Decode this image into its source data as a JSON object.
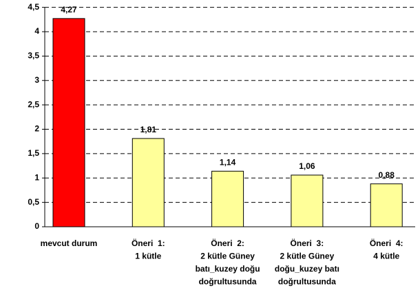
{
  "chart_data": {
    "type": "bar",
    "categories": [
      "mevcut durum",
      "Öneri  1:\n1 kütle",
      "Öneri  2:\n2 kütle Güney\nbatı_kuzey doğu\ndoğrultusunda",
      "Öneri  3:\n2 kütle Güney\ndoğu_kuzey batı\ndoğrultusunda",
      "Öneri  4:\n4 kütle"
    ],
    "values": [
      4.27,
      1.81,
      1.14,
      1.06,
      0.88
    ],
    "value_labels": [
      "4,27",
      "1,81",
      "1,14",
      "1,06",
      "0,88"
    ],
    "colors": [
      "#ff0000",
      "#ffff99",
      "#ffff99",
      "#ffff99",
      "#ffff99"
    ],
    "ylim": [
      0,
      4.5
    ],
    "yticks": [
      0,
      {
        "value": 0.5,
        "label": "0,5"
      },
      1,
      {
        "value": 1.5,
        "label": "1,5"
      },
      2,
      {
        "value": 2.5,
        "label": "2,5"
      },
      3,
      {
        "value": 3.5,
        "label": "3,5"
      },
      4,
      {
        "value": 4.5,
        "label": "4,5"
      }
    ],
    "grid": true
  }
}
